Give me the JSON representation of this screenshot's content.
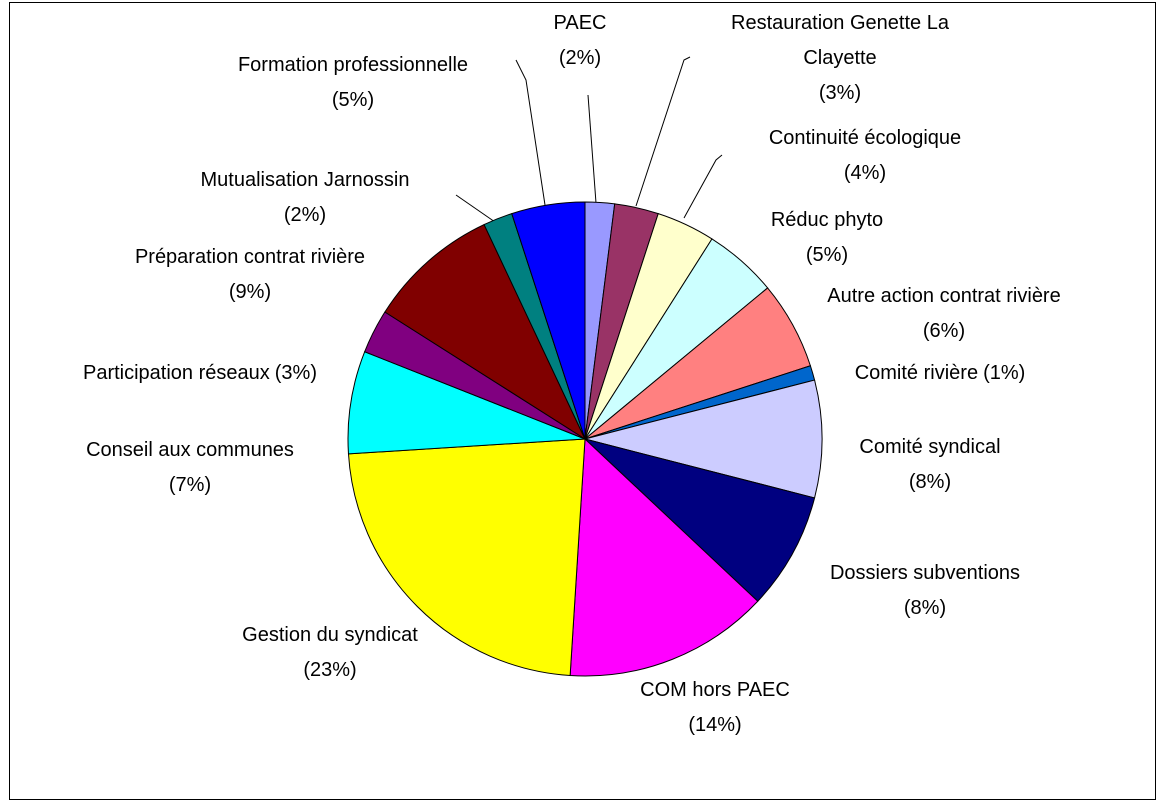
{
  "chart_data": {
    "type": "pie",
    "categories": [
      "PAEC",
      "Restauration Genette La Clayette",
      "Continuité écologique",
      "Réduc phyto",
      "Autre action contrat rivière",
      "Comité rivière",
      "Comité syndical",
      "Dossiers subventions",
      "COM hors PAEC",
      "Gestion du syndicat",
      "Conseil aux communes",
      "Participation réseaux",
      "Préparation contrat rivière",
      "Mutualisation Jarnossin",
      "Formation professionnelle"
    ],
    "values": [
      2,
      3,
      4,
      5,
      6,
      1,
      8,
      8,
      14,
      23,
      7,
      3,
      9,
      2,
      5
    ],
    "value_labels": [
      "(2%)",
      "(3%)",
      "(4%)",
      "(5%)",
      "(6%)",
      "(1%)",
      "(8%)",
      "(8%)",
      "(14%)",
      "(23%)",
      "(7%)",
      "(3%)",
      "(9%)",
      "(2%)",
      "(5%)"
    ],
    "colors": [
      "#9999ff",
      "#993366",
      "#ffffcc",
      "#ccffff",
      "#ff8080",
      "#0066cc",
      "#ccccff",
      "#000080",
      "#ff00ff",
      "#ffff00",
      "#00ffff",
      "#800080",
      "#800000",
      "#008080",
      "#0000ff"
    ]
  }
}
